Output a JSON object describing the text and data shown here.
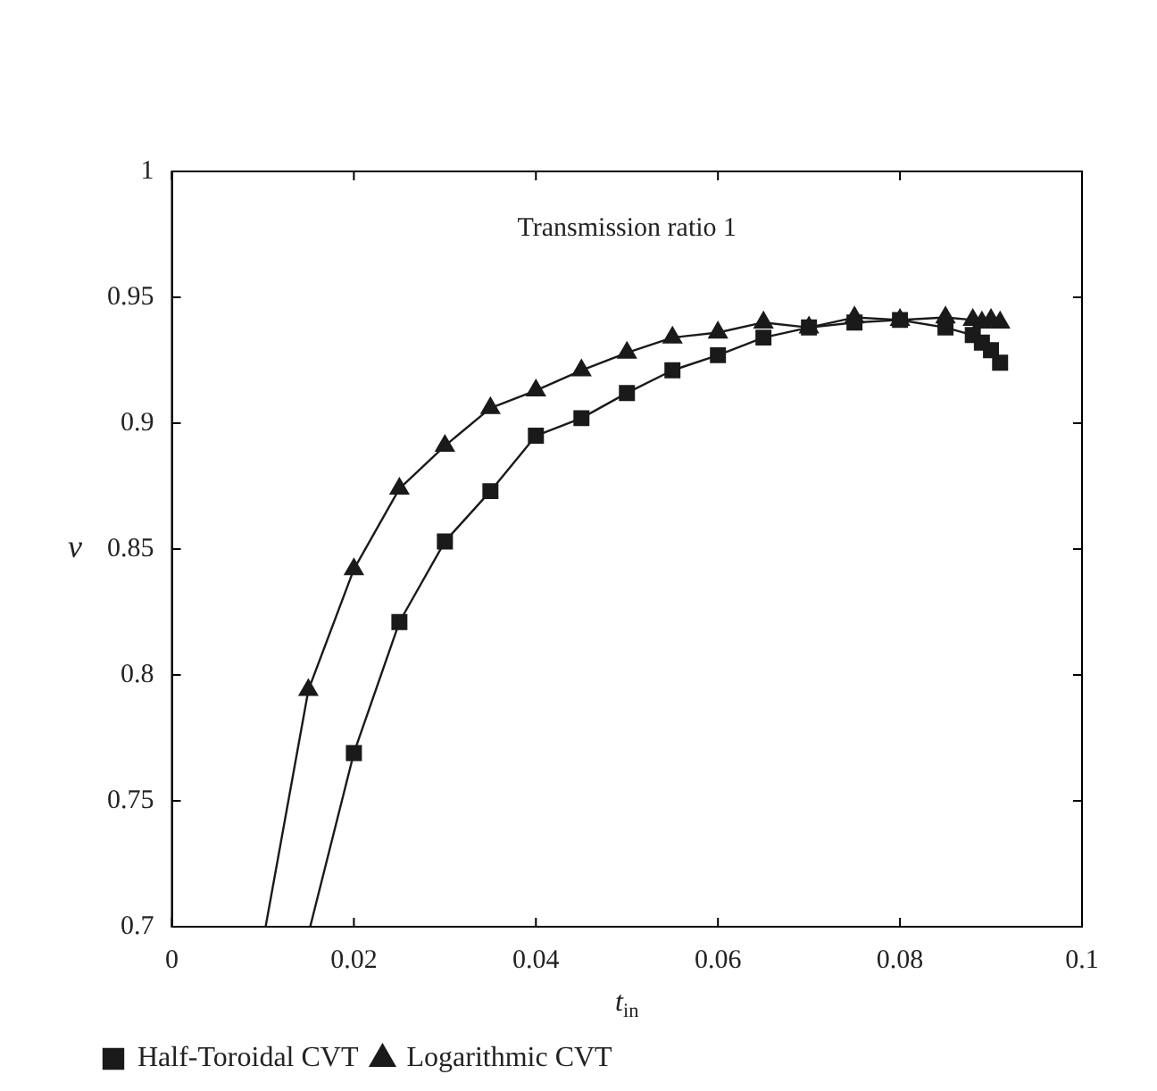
{
  "chart_data": {
    "type": "line",
    "xlabel": "t$_{in}$",
    "ylabel": "ν",
    "annotations": [
      "Transmission ratio 1"
    ],
    "xlim": [
      0,
      0.1
    ],
    "xticks": [
      0,
      0.02,
      0.04,
      0.06,
      0.08,
      0.1
    ],
    "ylim": [
      0.7,
      1
    ],
    "yticks": [
      0.7,
      0.75,
      0.8,
      0.85,
      0.9,
      0.95,
      1
    ],
    "grid": false,
    "legend": "bottom",
    "line_style": "solid",
    "series": [
      {
        "name": "Half-Toroidal CVT",
        "color": "#1a1a1a",
        "marker": "square",
        "x": [
          0.0152,
          0.02,
          0.025,
          0.03,
          0.035,
          0.04,
          0.045,
          0.05,
          0.055,
          0.06,
          0.065,
          0.07,
          0.075,
          0.08,
          0.085,
          0.088,
          0.089,
          0.09,
          0.091
        ],
        "values": [
          0.7,
          0.769,
          0.821,
          0.853,
          0.873,
          0.895,
          0.902,
          0.912,
          0.921,
          0.927,
          0.934,
          0.938,
          0.94,
          0.941,
          0.938,
          0.935,
          0.932,
          0.929,
          0.924
        ]
      },
      {
        "name": "Logarithmic CVT",
        "color": "#1a1a1a",
        "marker": "triangle",
        "x": [
          0.0103,
          0.015,
          0.02,
          0.025,
          0.03,
          0.035,
          0.04,
          0.045,
          0.05,
          0.055,
          0.06,
          0.065,
          0.07,
          0.075,
          0.08,
          0.085,
          0.088,
          0.089,
          0.09,
          0.091
        ],
        "values": [
          0.7,
          0.794,
          0.842,
          0.874,
          0.891,
          0.906,
          0.913,
          0.921,
          0.928,
          0.934,
          0.936,
          0.94,
          0.938,
          0.942,
          0.941,
          0.942,
          0.941,
          0.94,
          0.941,
          0.94
        ]
      }
    ]
  }
}
